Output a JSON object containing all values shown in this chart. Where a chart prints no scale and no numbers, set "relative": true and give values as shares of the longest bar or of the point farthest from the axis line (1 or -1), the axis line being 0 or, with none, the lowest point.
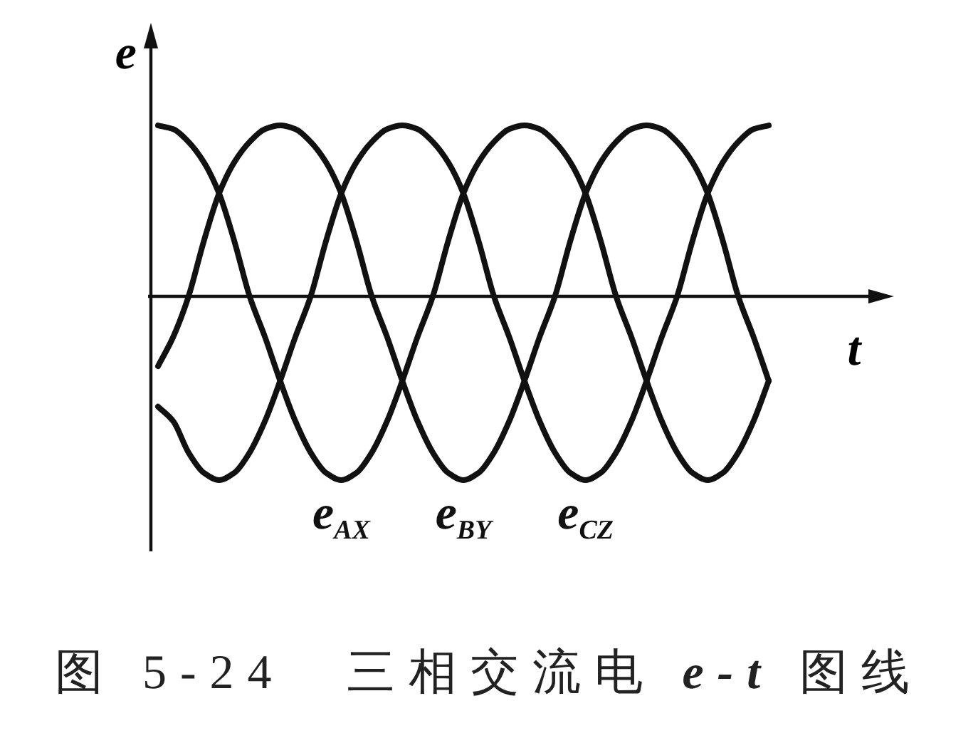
{
  "chart_data": {
    "type": "line",
    "title": "图 5-24　三相交流电 e-t 图线",
    "xlabel": "t",
    "ylabel": "e",
    "relative": true,
    "line_style": "solid",
    "categories": [
      null,
      null,
      null,
      null,
      null,
      null,
      null,
      null,
      null,
      null,
      null,
      null,
      null,
      null,
      null,
      null,
      null,
      null,
      null,
      null,
      null,
      null,
      null,
      null,
      null,
      null,
      null,
      null,
      null,
      null,
      null,
      null,
      null,
      null,
      null,
      null,
      null,
      null,
      null,
      null,
      null
    ],
    "series": [
      {
        "name": "e$_{AX}$",
        "color": "#111111",
        "values": [
          0.93,
          0.91,
          0.84,
          0.73,
          0.56,
          0.3,
          0,
          -0.22,
          -0.46,
          -0.68,
          -0.85,
          -0.96,
          -1,
          -0.96,
          -0.85,
          -0.68,
          -0.46,
          -0.22,
          0,
          0.3,
          0.56,
          0.73,
          0.84,
          0.91,
          0.93,
          0.91,
          0.84,
          0.73,
          0.56,
          0.3,
          0,
          -0.22,
          -0.46,
          -0.68,
          -0.85,
          -0.96,
          -1,
          -0.96,
          -0.85,
          -0.68,
          -0.46
        ]
      },
      {
        "name": "e$_{BY}$",
        "color": "#111111",
        "values": [
          -0.38,
          -0.22,
          0,
          0.3,
          0.56,
          0.73,
          0.84,
          0.91,
          0.93,
          0.91,
          0.84,
          0.73,
          0.56,
          0.3,
          0,
          -0.22,
          -0.46,
          -0.68,
          -0.85,
          -0.96,
          -1,
          -0.96,
          -0.85,
          -0.68,
          -0.46,
          -0.22,
          0,
          0.3,
          0.56,
          0.73,
          0.84,
          0.91,
          0.93,
          0.91,
          0.84,
          0.73,
          0.56,
          0.3,
          0,
          -0.22,
          -0.46
        ]
      },
      {
        "name": "e$_{CZ}$",
        "color": "#111111",
        "values": [
          -0.6,
          -0.68,
          -0.85,
          -0.96,
          -1,
          -0.96,
          -0.85,
          -0.68,
          -0.46,
          -0.22,
          0,
          0.3,
          0.56,
          0.73,
          0.84,
          0.91,
          0.93,
          0.91,
          0.84,
          0.73,
          0.56,
          0.3,
          0,
          -0.22,
          -0.46,
          -0.68,
          -0.85,
          -0.96,
          -1,
          -0.96,
          -0.85,
          -0.68,
          -0.46,
          -0.22,
          0,
          0.3,
          0.56,
          0.73,
          0.84,
          0.91,
          0.93
        ]
      }
    ]
  }
}
